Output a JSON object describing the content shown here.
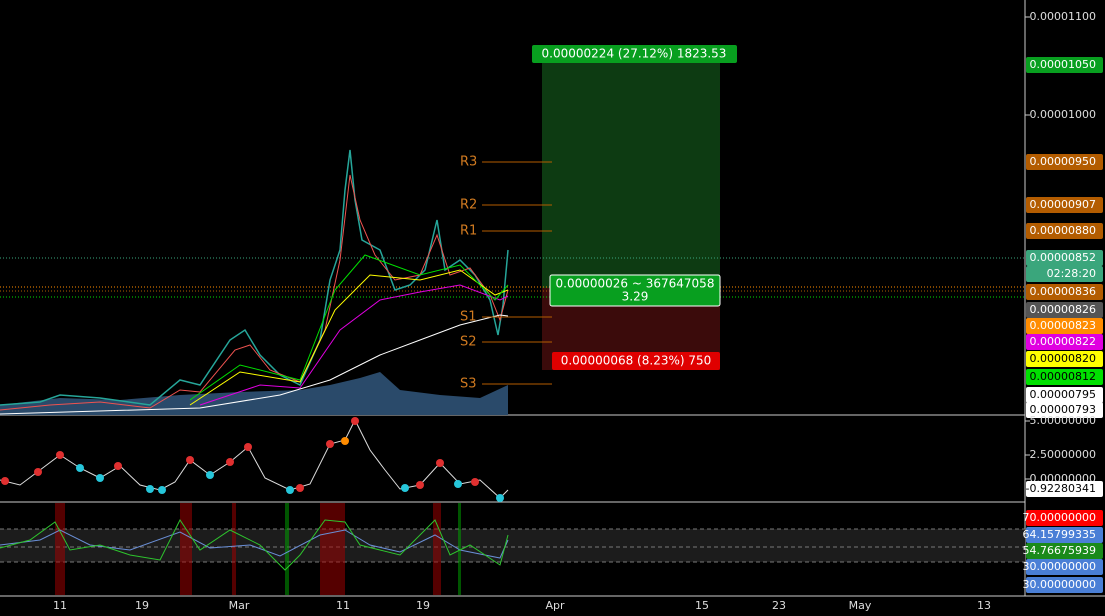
{
  "price_axis": [
    {
      "label": "0.00001100",
      "bg": "none",
      "fg": "#ddd"
    },
    {
      "label": "0.00001050",
      "bg": "#089f1f",
      "fg": "#fff"
    },
    {
      "label": "0.00001000",
      "bg": "none",
      "fg": "#ddd"
    },
    {
      "label": "0.00000950",
      "bg": "#b35c00",
      "fg": "#fff"
    },
    {
      "label": "0.00000907",
      "bg": "#b35c00",
      "fg": "#fff"
    },
    {
      "label": "0.00000880",
      "bg": "#b35c00",
      "fg": "#fff"
    },
    {
      "label": "0.00000852",
      "bg": "#3aa67c",
      "fg": "#fff"
    },
    {
      "label": "02:28:20",
      "bg": "#3aa67c",
      "fg": "#fff"
    },
    {
      "label": "0.00000836",
      "bg": "#b35c00",
      "fg": "#fff"
    },
    {
      "label": "0.00000826",
      "bg": "#555",
      "fg": "#fff"
    },
    {
      "label": "0.00000823",
      "bg": "#ff8c00",
      "fg": "#fff"
    },
    {
      "label": "0.00000822",
      "bg": "#e000e0",
      "fg": "#fff"
    },
    {
      "label": "0.00000820",
      "bg": "#ffff00",
      "fg": "#000"
    },
    {
      "label": "0.00000812",
      "bg": "#00e000",
      "fg": "#000"
    },
    {
      "label": "0.00000795",
      "bg": "#fff",
      "fg": "#000"
    },
    {
      "label": "0.00000793",
      "bg": "#fff",
      "fg": "#000"
    }
  ],
  "oscillator_axis": [
    {
      "label": "5.00000000",
      "bg": "none",
      "fg": "#ddd"
    },
    {
      "label": "2.50000000",
      "bg": "none",
      "fg": "#ddd"
    },
    {
      "label": "0.00000000",
      "bg": "none",
      "fg": "#ddd"
    },
    {
      "label": "-0.92280341",
      "bg": "#fff",
      "fg": "#000"
    }
  ],
  "rsi_axis": [
    {
      "label": "70.00000000",
      "bg": "#ff0000",
      "fg": "#fff"
    },
    {
      "label": "64.15799335",
      "bg": "#4a7fd6",
      "fg": "#fff"
    },
    {
      "label": "54.76675939",
      "bg": "#1a8a1a",
      "fg": "#fff"
    },
    {
      "label": "30.00000000",
      "bg": "#4a7fd6",
      "fg": "#fff"
    },
    {
      "label": "30.00000000",
      "bg": "#4a7fd6",
      "fg": "#fff"
    }
  ],
  "date_axis": [
    "11",
    "19",
    "Mar",
    "11",
    "19",
    "Apr",
    "15",
    "23",
    "May",
    "13"
  ],
  "pivots": [
    "R3",
    "R2",
    "R1",
    "S1",
    "S2",
    "S3"
  ],
  "position": {
    "target": "0.00000224 (27.12%) 1823.53",
    "entry_line1": "0.00000026 ~ 367647058",
    "entry_line2": "3.29",
    "stop": "0.00000068 (8.23%) 750"
  }
}
